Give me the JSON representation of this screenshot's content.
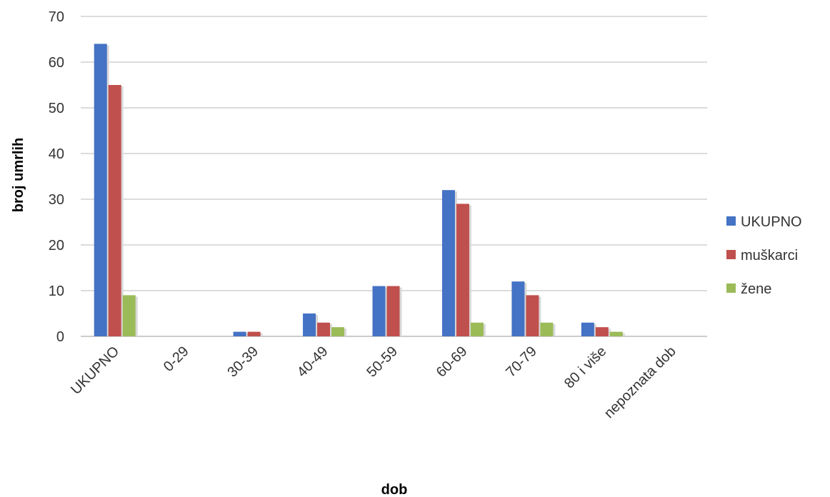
{
  "chart_data": {
    "type": "bar",
    "title": "",
    "xlabel": "dob",
    "ylabel": "broj umrlih",
    "ylim": [
      0,
      70
    ],
    "yticks": [
      "0",
      "10",
      "20",
      "30",
      "40",
      "50",
      "60",
      "70"
    ],
    "categories": [
      "UKUPNO",
      "0-29",
      "30-39",
      "40-49",
      "50-59",
      "60-69",
      "70-79",
      "80 i više",
      "nepoznata dob"
    ],
    "series": [
      {
        "name": "UKUPNO",
        "color": "#4472C4",
        "values": [
          64,
          0,
          1,
          5,
          11,
          32,
          12,
          3,
          0
        ]
      },
      {
        "name": "muškarci",
        "color": "#C0504D",
        "values": [
          55,
          0,
          1,
          3,
          11,
          29,
          9,
          2,
          0
        ]
      },
      {
        "name": "žene",
        "color": "#9BBB59",
        "values": [
          9,
          0,
          0,
          2,
          0,
          3,
          3,
          1,
          0
        ]
      }
    ],
    "grid": true,
    "legend_position": "right"
  }
}
